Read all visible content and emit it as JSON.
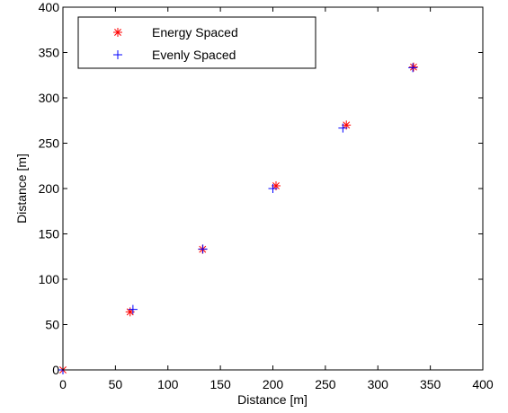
{
  "chart_data": {
    "type": "scatter",
    "title": "",
    "xlabel": "Distance [m]",
    "ylabel": "Distance [m]",
    "xlim": [
      0,
      400
    ],
    "ylim": [
      0,
      400
    ],
    "xticks": [
      0,
      50,
      100,
      150,
      200,
      250,
      300,
      350,
      400
    ],
    "yticks": [
      0,
      50,
      100,
      150,
      200,
      250,
      300,
      350,
      400
    ],
    "grid": false,
    "legend_position": "top-left",
    "series": [
      {
        "name": "Energy Spaced",
        "marker": "asterisk",
        "color": "#ff0000",
        "x": [
          0,
          64,
          133,
          203,
          270,
          334
        ],
        "y": [
          0,
          64,
          133,
          203,
          270,
          334
        ]
      },
      {
        "name": "Evenly Spaced",
        "marker": "plus",
        "color": "#0000ff",
        "x": [
          0,
          66.7,
          133.3,
          200,
          266.7,
          333.3
        ],
        "y": [
          0,
          66.7,
          133.3,
          200,
          266.7,
          333.3
        ]
      }
    ]
  }
}
